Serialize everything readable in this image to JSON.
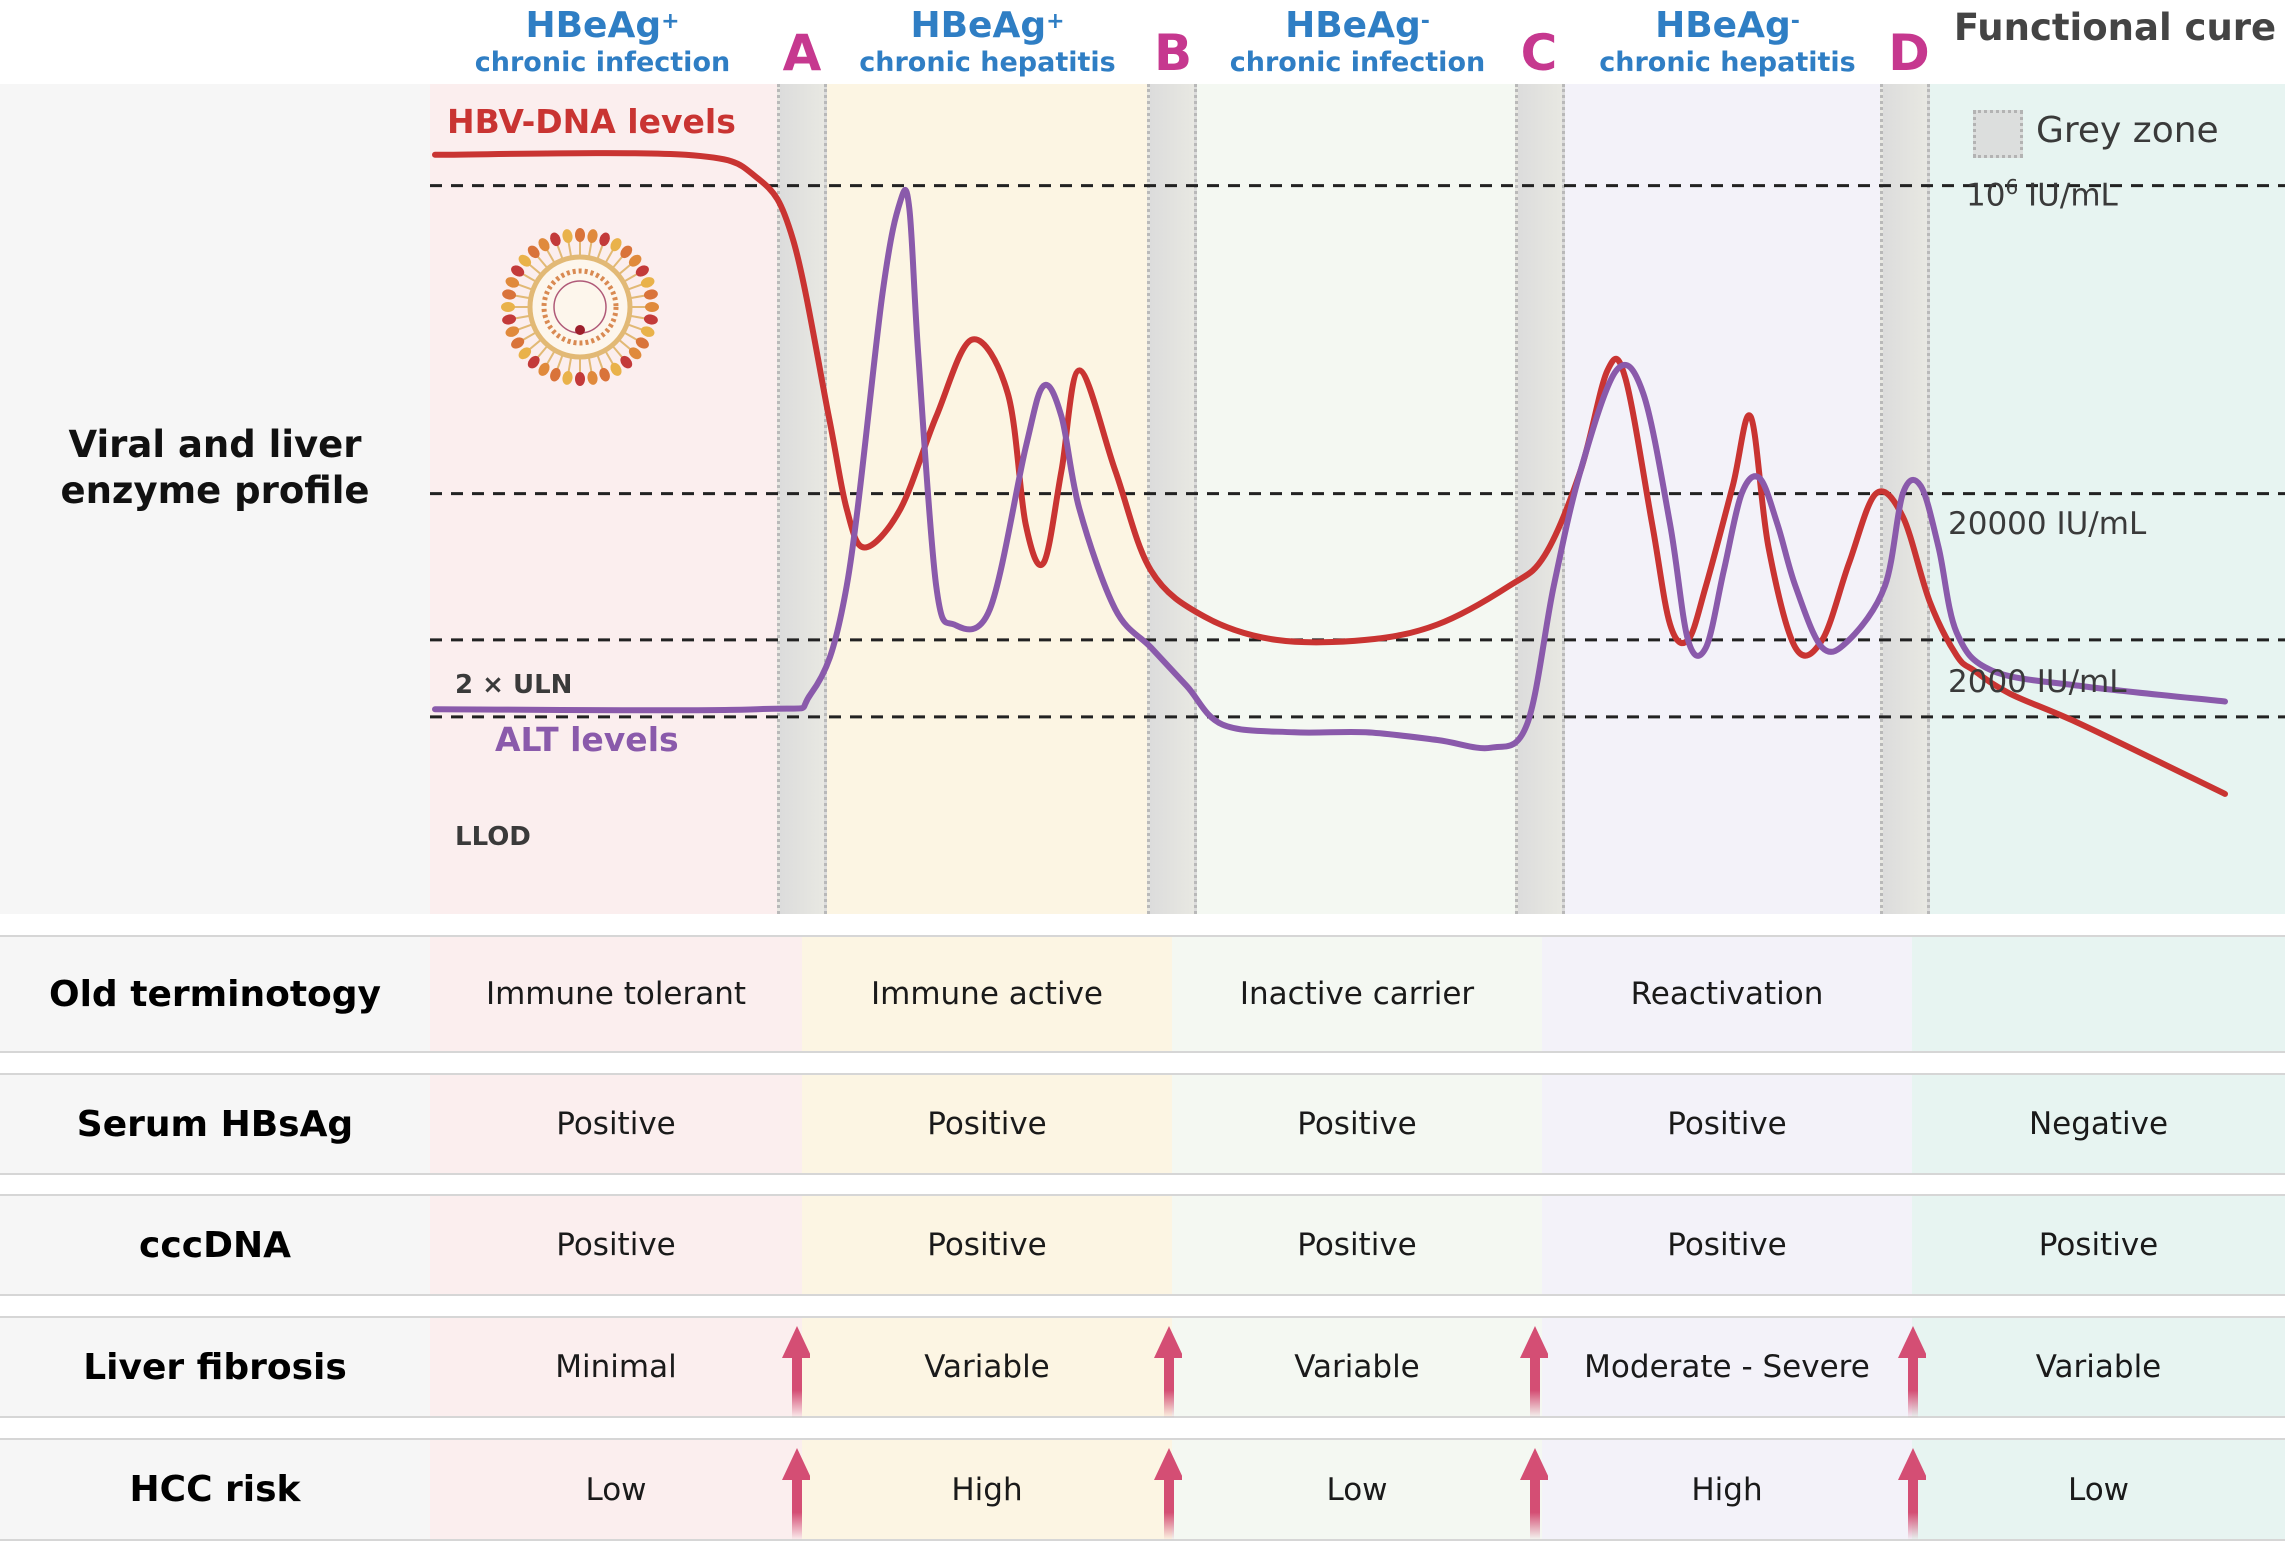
{
  "phases": [
    {
      "antigen": "HBeAg",
      "sign": "+",
      "stage": "chronic infection",
      "old_term": "Immune tolerant",
      "hbsag": "Positive",
      "cccdna": "Positive",
      "fibrosis": "Minimal",
      "hcc_risk": "Low",
      "color": "#fbeeee"
    },
    {
      "antigen": "HBeAg",
      "sign": "+",
      "stage": "chronic hepatitis",
      "old_term": "Immune active",
      "hbsag": "Positive",
      "cccdna": "Positive",
      "fibrosis": "Variable",
      "hcc_risk": "High",
      "color": "#fcf5e3"
    },
    {
      "antigen": "HBeAg",
      "sign": "-",
      "stage": "chronic infection",
      "old_term": "Inactive carrier",
      "hbsag": "Positive",
      "cccdna": "Positive",
      "fibrosis": "Variable",
      "hcc_risk": "Low",
      "color": "#f4f8f2"
    },
    {
      "antigen": "HBeAg",
      "sign": "-",
      "stage": "chronic hepatitis",
      "old_term": "Reactivation",
      "hbsag": "Positive",
      "cccdna": "Positive",
      "fibrosis": "Moderate - Severe",
      "hcc_risk": "High",
      "color": "#f3f2f9"
    },
    {
      "antigen": "Functional cure",
      "sign": "",
      "stage": "",
      "old_term": "",
      "hbsag": "Negative",
      "cccdna": "Positive",
      "fibrosis": "Variable",
      "hcc_risk": "Low",
      "color": "#e7f4f1"
    }
  ],
  "transitions": [
    "A",
    "B",
    "C",
    "D"
  ],
  "row_labels": {
    "profile": [
      "Viral and liver",
      "enzyme profile"
    ],
    "old_term": "Old terminotogy",
    "hbsag": "Serum HBsAg",
    "cccdna": "cccDNA",
    "fibrosis": "Liver fibrosis",
    "hcc_risk": "HCC risk"
  },
  "chart_labels": {
    "hbv_dna": "HBV-DNA levels",
    "alt": "ALT levels",
    "uln": "2 × ULN",
    "llod": "LLOD",
    "ref_1e6_base": "10",
    "ref_1e6_exp": "6",
    "ref_1e6_unit": " IU/mL",
    "ref_20000": "20000 IU/mL",
    "ref_2000": "2000 IU/mL",
    "legend_grey_zone": "Grey zone"
  },
  "colors": {
    "hbv_dna": "#c93432",
    "alt": "#8a5aab",
    "phase_header": "#2f7ec4",
    "transition_letter": "#c6388f",
    "arrow": "#d44e74"
  },
  "chart_data": {
    "type": "line",
    "title": "Viral and liver enzyme profile",
    "xlabel": "",
    "ylabel": "",
    "x_phases": [
      "HBeAg+ chronic infection",
      "A",
      "HBeAg+ chronic hepatitis",
      "B",
      "HBeAg- chronic infection",
      "C",
      "HBeAg- chronic hepatitis",
      "D",
      "Functional cure"
    ],
    "reference_lines": [
      {
        "label": "10^6 IU/mL",
        "level": 0.92
      },
      {
        "label": "20000 IU/mL",
        "level": 0.52
      },
      {
        "label": "2000 IU/mL / 2 × ULN",
        "level": 0.33
      },
      {
        "label": "LLOD",
        "level": 0.23
      }
    ],
    "x_range": [
      0,
      100
    ],
    "y_range": [
      0,
      1
    ],
    "series": [
      {
        "name": "HBV-DNA levels",
        "x": [
          0,
          14,
          18,
          20,
          22,
          23,
          24,
          26,
          28,
          30,
          32,
          33,
          34,
          35,
          36,
          38,
          40,
          43,
          47,
          52,
          56,
          60,
          62,
          64,
          65.5,
          66.5,
          68,
          69,
          70,
          71,
          72.5,
          73.5,
          74.5,
          76,
          77.5,
          79,
          80.5,
          82,
          83.5,
          85,
          86,
          88,
          92,
          100
        ],
        "y": [
          0.96,
          0.96,
          0.93,
          0.85,
          0.62,
          0.5,
          0.45,
          0.5,
          0.62,
          0.72,
          0.65,
          0.48,
          0.43,
          0.55,
          0.68,
          0.55,
          0.42,
          0.36,
          0.33,
          0.33,
          0.35,
          0.4,
          0.44,
          0.55,
          0.68,
          0.67,
          0.48,
          0.35,
          0.33,
          0.4,
          0.53,
          0.62,
          0.45,
          0.32,
          0.33,
          0.43,
          0.52,
          0.49,
          0.38,
          0.31,
          0.29,
          0.26,
          0.22,
          0.13
        ]
      },
      {
        "name": "ALT levels",
        "x": [
          0,
          18,
          21,
          23,
          25,
          26,
          26.5,
          27,
          28,
          29,
          31,
          33,
          34,
          35,
          36,
          38,
          40,
          42,
          44,
          48,
          52,
          56,
          59,
          61,
          62.5,
          64,
          66,
          67.5,
          69,
          70,
          71,
          72,
          73,
          74,
          75,
          76,
          77.5,
          79,
          81,
          82,
          83,
          84,
          85,
          87,
          92,
          100
        ],
        "y": [
          0.24,
          0.24,
          0.26,
          0.4,
          0.78,
          0.9,
          0.89,
          0.7,
          0.4,
          0.35,
          0.37,
          0.58,
          0.66,
          0.62,
          0.5,
          0.37,
          0.32,
          0.27,
          0.22,
          0.21,
          0.21,
          0.2,
          0.19,
          0.22,
          0.4,
          0.55,
          0.68,
          0.65,
          0.48,
          0.33,
          0.32,
          0.42,
          0.52,
          0.54,
          0.48,
          0.4,
          0.32,
          0.33,
          0.4,
          0.52,
          0.53,
          0.45,
          0.34,
          0.29,
          0.27,
          0.25
        ]
      }
    ]
  }
}
